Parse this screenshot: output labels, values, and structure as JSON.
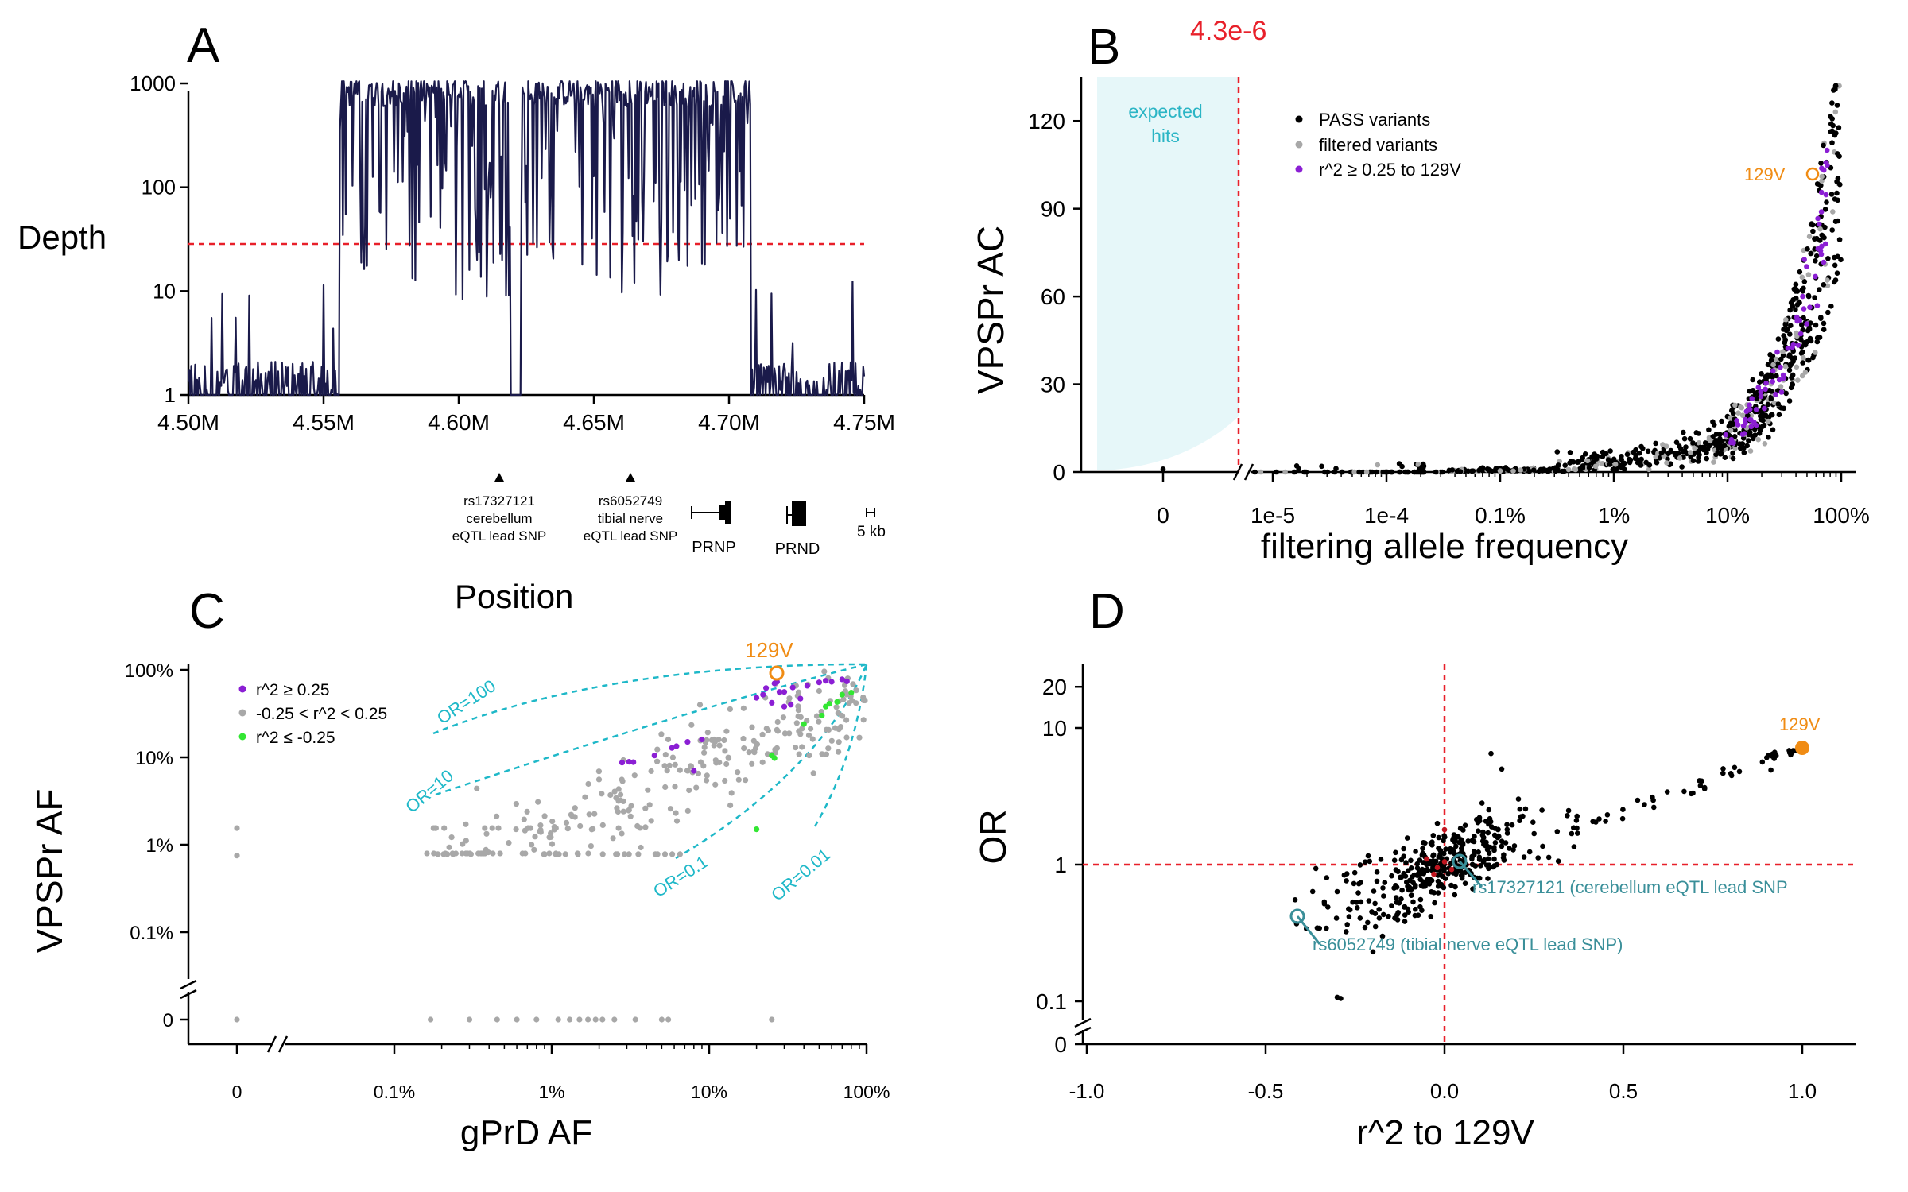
{
  "colors": {
    "depth_line": "#1a1a4a",
    "threshold": "#e8202a",
    "pass": "#000000",
    "filtered": "#a8a8a8",
    "ld_purple": "#8b1fd4",
    "neg_green": "#33e633",
    "label_orange": "#f08c14",
    "teal": "#1eb8c8",
    "teal_dark": "#3a8f99",
    "expected_fill": "#e6f7f9"
  },
  "chart_data": [
    {
      "panel": "A",
      "type": "line",
      "panel_label": "A",
      "xlabel": "Position",
      "ylabel": "Depth",
      "y_scale": "log",
      "ylim": [
        1,
        1000
      ],
      "xlim": [
        4.5,
        4.75
      ],
      "x_ticks": [
        "4.50M",
        "4.55M",
        "4.60M",
        "4.65M",
        "4.70M",
        "4.75M"
      ],
      "y_ticks": [
        "1",
        "10",
        "100",
        "1000"
      ],
      "threshold": 30,
      "covered_region": [
        4.556,
        4.708
      ],
      "dropout_region": [
        4.619,
        4.623
      ],
      "annotations": [
        {
          "label": [
            "rs17327121",
            "cerebellum",
            "eQTL lead SNP"
          ],
          "position": 4.612
        },
        {
          "label": [
            "rs6052749",
            "tibial nerve",
            "eQTL lead SNP"
          ],
          "position": 4.661
        }
      ],
      "genes": [
        "PRNP",
        "PRND"
      ],
      "scale_bar": "5 kb"
    },
    {
      "panel": "B",
      "type": "scatter",
      "panel_label": "B",
      "xlabel": "filtering allele frequency",
      "ylabel": "VPSPr AC",
      "x_scale": "log",
      "x_ticks": [
        "0",
        "1e-5",
        "1e-4",
        "0.1%",
        "1%",
        "10%",
        "100%"
      ],
      "y_ticks": [
        "0",
        "30",
        "60",
        "90",
        "120"
      ],
      "ylim": [
        0,
        135
      ],
      "threshold_label": "4.3e-6",
      "shaded_label": [
        "expected",
        "hits"
      ],
      "legend": [
        "PASS variants",
        "filtered variants",
        "r^2 ≥ 0.25 to 129V"
      ],
      "legend_position": "top-right",
      "highlight": {
        "label": "129V",
        "x": 0.4,
        "y": 102
      }
    },
    {
      "panel": "C",
      "type": "scatter",
      "panel_label": "C",
      "xlabel": "gPrD AF",
      "ylabel": "VPSPr AF",
      "x_scale": "log",
      "y_scale": "log",
      "x_ticks": [
        "0",
        "0.1%",
        "1%",
        "10%",
        "100%"
      ],
      "y_ticks": [
        "0",
        "0.1%",
        "1%",
        "10%",
        "100%"
      ],
      "legend": [
        "r^2 ≥ 0.25",
        "-0.25 < r^2 < 0.25",
        "r^2 ≤ -0.25"
      ],
      "legend_position": "top-left",
      "or_curves": [
        "OR=100",
        "OR=10",
        "OR=0.1",
        "OR=0.01"
      ],
      "highlight": {
        "label": "129V",
        "x": 0.27,
        "y": 0.8
      }
    },
    {
      "panel": "D",
      "type": "scatter",
      "panel_label": "D",
      "xlabel": "r^2 to 129V",
      "ylabel": "OR",
      "y_scale": "log",
      "xlim": [
        -1.0,
        1.0
      ],
      "x_ticks": [
        "-1.0",
        "-0.5",
        "0.0",
        "0.5",
        "1.0"
      ],
      "y_ticks": [
        "0",
        "0.1",
        "1",
        "10",
        "20"
      ],
      "highlight": {
        "label": "129V",
        "x": 1.0,
        "y": 7.0
      },
      "annotations": [
        {
          "label": "rs17327121 (cerebellum eQTL lead SNP",
          "x": 0.04,
          "y": 1.05
        },
        {
          "label": "rs6052749 (tibial nerve eQTL lead SNP)",
          "x": -0.41,
          "y": 0.42
        }
      ]
    }
  ]
}
